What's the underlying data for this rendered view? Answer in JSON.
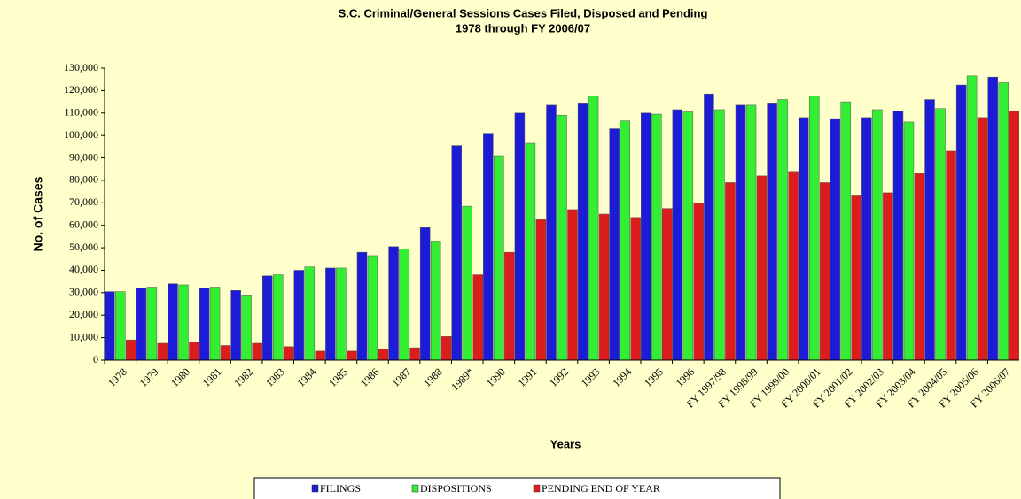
{
  "chart_data": {
    "type": "bar",
    "title": "S.C. Criminal/General Sessions Cases Filed, Disposed and Pending",
    "subtitle": "1978 through FY 2006/07",
    "x_label": "Years",
    "y_label": "No. of Cases",
    "categories": [
      "1978",
      "1979",
      "1980",
      "1981",
      "1982",
      "1983",
      "1984",
      "1985",
      "1986",
      "1987",
      "1988",
      "1989*",
      "1990",
      "1991",
      "1992",
      "1993",
      "1994",
      "1995",
      "1996",
      "FY 1997/98",
      "FY 1998/99",
      "FY 1999/00",
      "FY 2000/01",
      "FY 2001/02",
      "FY 2002/03",
      "FY 2003/04",
      "FY 2004/05",
      "FY 2005/06",
      "FY 2006/07"
    ],
    "series": [
      {
        "name": "FILINGS",
        "color": "#1c1cd8",
        "values": [
          30500,
          32000,
          34000,
          32000,
          31000,
          37500,
          40000,
          41000,
          48000,
          50500,
          59000,
          95500,
          101000,
          110000,
          113500,
          114500,
          103000,
          110000,
          111500,
          118500,
          113500,
          114500,
          108000,
          107500,
          108000,
          111000,
          116000,
          122500,
          126000
        ]
      },
      {
        "name": "DISPOSITIONS",
        "color": "#33ee33",
        "values": [
          30500,
          32500,
          33500,
          32500,
          29000,
          38000,
          41500,
          41000,
          46500,
          49500,
          53000,
          68500,
          91000,
          96500,
          109000,
          117500,
          106500,
          109500,
          110500,
          111500,
          113500,
          116000,
          117500,
          115000,
          111500,
          106000,
          112000,
          126500,
          123500
        ]
      },
      {
        "name": "PENDING END OF YEAR",
        "color": "#dd1c1c",
        "values": [
          9000,
          7500,
          8000,
          6500,
          7500,
          6000,
          4000,
          4000,
          5000,
          5500,
          10500,
          38000,
          48000,
          62500,
          67000,
          65000,
          63500,
          67500,
          70000,
          79000,
          82000,
          84000,
          79000,
          73500,
          74500,
          83000,
          93000,
          108000,
          111000
        ]
      }
    ],
    "ylim": [
      0,
      130000
    ],
    "yticks": [
      0,
      {
        "value": 10000,
        "label": "10,000"
      },
      {
        "value": 20000,
        "label": "20,000"
      },
      {
        "value": 30000,
        "label": "30,000"
      },
      {
        "value": 40000,
        "label": "40,000"
      },
      {
        "value": 50000,
        "label": "50,000"
      },
      {
        "value": 60000,
        "label": "60,000"
      },
      {
        "value": 70000,
        "label": "70,000"
      },
      {
        "value": 80000,
        "label": "80,000"
      },
      {
        "value": 90000,
        "label": "90,000"
      },
      {
        "value": 100000,
        "label": "100,000"
      },
      {
        "value": 110000,
        "label": "110,000"
      },
      {
        "value": 120000,
        "label": "120,000"
      },
      {
        "value": 130000,
        "label": "130,000"
      }
    ],
    "grid": false,
    "legend": "bottom"
  }
}
